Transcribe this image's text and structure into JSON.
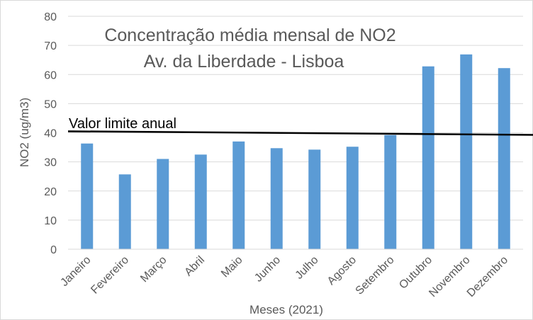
{
  "chart_data": {
    "type": "bar",
    "title_lines": [
      "Concentração média mensal de NO2",
      "Av. da Liberdade - Lisboa"
    ],
    "xlabel": "Meses (2021)",
    "ylabel": "NO2 (ug/m3)",
    "ylim": [
      0,
      80
    ],
    "yticks": [
      0,
      10,
      20,
      30,
      40,
      50,
      60,
      70,
      80
    ],
    "grid": true,
    "categories": [
      "Janeiro",
      "Fevereiro",
      "Março",
      "Abril",
      "Maio",
      "Junho",
      "Julho",
      "Agosto",
      "Setembro",
      "Outubro",
      "Novembro",
      "Dezembro"
    ],
    "values": [
      36.3,
      25.7,
      31.0,
      32.5,
      37.0,
      34.7,
      34.2,
      35.2,
      39.2,
      62.8,
      66.9,
      62.2
    ],
    "bar_color": "#5b9bd5",
    "reference_line": {
      "label": "Valor limite anual",
      "start_value": 40.5,
      "end_value": 39.5,
      "color": "#000000"
    }
  }
}
